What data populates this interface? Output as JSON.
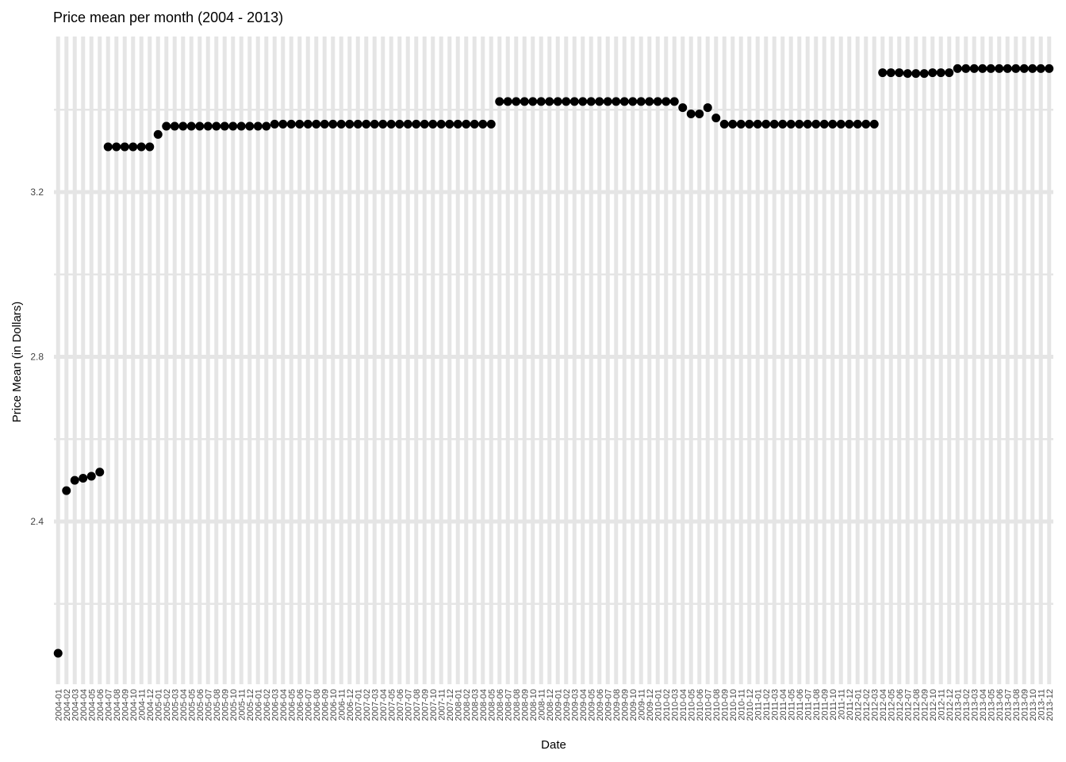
{
  "chart_data": {
    "type": "scatter",
    "title": "Price mean per month (2004 - 2013)",
    "xlabel": "Date",
    "ylabel": "Price Mean (in Dollars)",
    "ylim": [
      2.0,
      3.6
    ],
    "yticks": [
      2.4,
      2.8,
      3.2
    ],
    "grid": true,
    "x": [
      "2004-01",
      "2004-02",
      "2004-03",
      "2004-04",
      "2004-05",
      "2004-06",
      "2004-07",
      "2004-08",
      "2004-09",
      "2004-10",
      "2004-11",
      "2004-12",
      "2005-01",
      "2005-02",
      "2005-03",
      "2005-04",
      "2005-05",
      "2005-06",
      "2005-07",
      "2005-08",
      "2005-09",
      "2005-10",
      "2005-11",
      "2005-12",
      "2006-01",
      "2006-02",
      "2006-03",
      "2006-04",
      "2006-05",
      "2006-06",
      "2006-07",
      "2006-08",
      "2006-09",
      "2006-10",
      "2006-11",
      "2006-12",
      "2007-01",
      "2007-02",
      "2007-03",
      "2007-04",
      "2007-05",
      "2007-06",
      "2007-07",
      "2007-08",
      "2007-09",
      "2007-10",
      "2007-11",
      "2007-12",
      "2008-01",
      "2008-02",
      "2008-03",
      "2008-04",
      "2008-05",
      "2008-06",
      "2008-07",
      "2008-08",
      "2008-09",
      "2008-10",
      "2008-11",
      "2008-12",
      "2009-01",
      "2009-02",
      "2009-03",
      "2009-04",
      "2009-05",
      "2009-06",
      "2009-07",
      "2009-08",
      "2009-09",
      "2009-10",
      "2009-11",
      "2009-12",
      "2010-01",
      "2010-02",
      "2010-03",
      "2010-04",
      "2010-05",
      "2010-06",
      "2010-07",
      "2010-08",
      "2010-09",
      "2010-10",
      "2010-11",
      "2010-12",
      "2011-01",
      "2011-02",
      "2011-03",
      "2011-04",
      "2011-05",
      "2011-06",
      "2011-07",
      "2011-08",
      "2011-09",
      "2011-10",
      "2011-11",
      "2011-12",
      "2012-01",
      "2012-02",
      "2012-03",
      "2012-04",
      "2012-05",
      "2012-06",
      "2012-07",
      "2012-08",
      "2012-09",
      "2012-10",
      "2012-11",
      "2012-12",
      "2013-01",
      "2013-02",
      "2013-03",
      "2013-04",
      "2013-05",
      "2013-06",
      "2013-07",
      "2013-08",
      "2013-09",
      "2013-10",
      "2013-11",
      "2013-12"
    ],
    "y": [
      2.08,
      2.475,
      2.5,
      2.505,
      2.51,
      2.52,
      3.31,
      3.31,
      3.31,
      3.31,
      3.31,
      3.31,
      3.34,
      3.36,
      3.36,
      3.36,
      3.36,
      3.36,
      3.36,
      3.36,
      3.36,
      3.36,
      3.36,
      3.36,
      3.36,
      3.36,
      3.365,
      3.365,
      3.365,
      3.365,
      3.365,
      3.365,
      3.365,
      3.365,
      3.365,
      3.365,
      3.365,
      3.365,
      3.365,
      3.365,
      3.365,
      3.365,
      3.365,
      3.365,
      3.365,
      3.365,
      3.365,
      3.365,
      3.365,
      3.365,
      3.365,
      3.365,
      3.365,
      3.42,
      3.42,
      3.42,
      3.42,
      3.42,
      3.42,
      3.42,
      3.42,
      3.42,
      3.42,
      3.42,
      3.42,
      3.42,
      3.42,
      3.42,
      3.42,
      3.42,
      3.42,
      3.42,
      3.42,
      3.42,
      3.42,
      3.405,
      3.39,
      3.39,
      3.405,
      3.38,
      3.365,
      3.365,
      3.365,
      3.365,
      3.365,
      3.365,
      3.365,
      3.365,
      3.365,
      3.365,
      3.365,
      3.365,
      3.365,
      3.365,
      3.365,
      3.365,
      3.365,
      3.365,
      3.365,
      3.49,
      3.49,
      3.49,
      3.488,
      3.488,
      3.488,
      3.49,
      3.49,
      3.49,
      3.5,
      3.5,
      3.5,
      3.5,
      3.5,
      3.5,
      3.5,
      3.5,
      3.5,
      3.5,
      3.5,
      3.5
    ],
    "colors": {
      "point": "#000000",
      "grid": "#e5e5e5",
      "text": "#444444"
    }
  }
}
